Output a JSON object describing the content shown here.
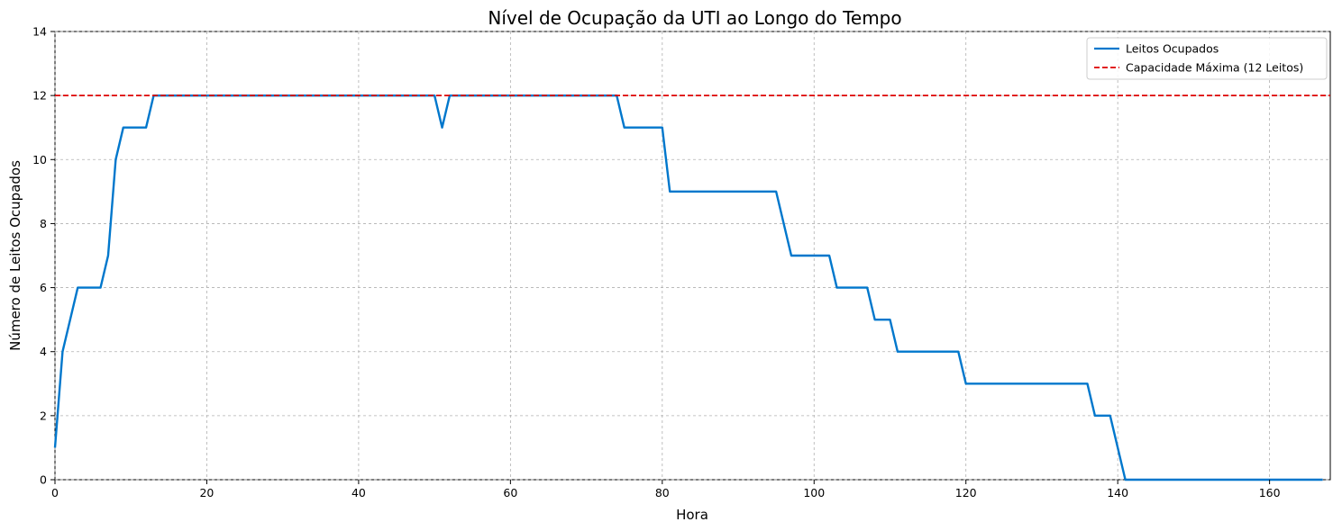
{
  "chart_data": {
    "type": "line",
    "title": "Nível de Ocupação da UTI ao Longo do Tempo",
    "xlabel": "Hora",
    "ylabel": "Número de Leitos Ocupados",
    "xlim": [
      0,
      168
    ],
    "ylim": [
      0,
      14
    ],
    "xticks": [
      0,
      20,
      40,
      60,
      80,
      100,
      120,
      140,
      160
    ],
    "yticks": [
      0,
      2,
      4,
      6,
      8,
      10,
      12,
      14
    ],
    "grid": true,
    "legend_position": "top-right",
    "series": [
      {
        "name": "Leitos Ocupados",
        "color": "#0077cc",
        "style": "solid",
        "points": [
          [
            0,
            1
          ],
          [
            1,
            4
          ],
          [
            2,
            5
          ],
          [
            3,
            6
          ],
          [
            6,
            6
          ],
          [
            7,
            7
          ],
          [
            8,
            10
          ],
          [
            9,
            11
          ],
          [
            12,
            11
          ],
          [
            13,
            12
          ],
          [
            50,
            12
          ],
          [
            51,
            11
          ],
          [
            52,
            12
          ],
          [
            74,
            12
          ],
          [
            75,
            11
          ],
          [
            80,
            11
          ],
          [
            81,
            9
          ],
          [
            95,
            9
          ],
          [
            97,
            7
          ],
          [
            102,
            7
          ],
          [
            103,
            6
          ],
          [
            107,
            6
          ],
          [
            108,
            5
          ],
          [
            110,
            5
          ],
          [
            111,
            4
          ],
          [
            119,
            4
          ],
          [
            120,
            3
          ],
          [
            136,
            3
          ],
          [
            137,
            2
          ],
          [
            139,
            2
          ],
          [
            141,
            0
          ],
          [
            167,
            0
          ]
        ]
      },
      {
        "name": "Capacidade Máxima (12 Leitos)",
        "color": "#dd0000",
        "style": "dashed",
        "y": 12
      }
    ]
  }
}
